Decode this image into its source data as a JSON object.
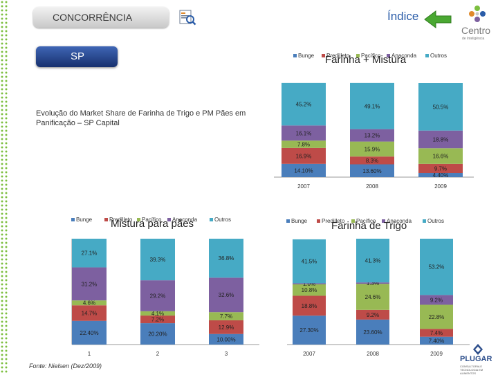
{
  "header": {
    "section_label": "CONCORRÊNCIA",
    "region_label": "SP",
    "index_link": "Índice",
    "logo_name": "Centro",
    "logo_subtitle": "de Inteligência"
  },
  "subtitle": "Evolução do Market Share de Farinha de Trigo e PM Pães em Panificação – SP Capital",
  "source": "Fonte: Nielsen (Dez/2009)",
  "footer_logo": {
    "name": "PLUGAR",
    "tagline": "CONSULTORIA E TECNOLOGIA EM ALIMENTOS"
  },
  "colors": {
    "Bunge": "#4a7ebb",
    "Predilleto": "#be4b48",
    "Pacífico": "#98b954",
    "Anaconda": "#7d60a0",
    "Outros": "#46aac5"
  },
  "chart_data": [
    {
      "id": "chart-a",
      "type": "bar",
      "stacked": true,
      "title": "Farinha + Mistura",
      "legend": [
        "Bunge",
        "Predilleto",
        "Pacífico",
        "Anaconda",
        "Outros"
      ],
      "categories": [
        "2007",
        "2008",
        "2009"
      ],
      "series": [
        {
          "name": "Bunge",
          "values": [
            14.1,
            13.6,
            4.4
          ],
          "labels": [
            "14.10%",
            "13.60%",
            "4.40%"
          ]
        },
        {
          "name": "Predilleto",
          "values": [
            16.9,
            8.3,
            9.7
          ],
          "labels": [
            "16.9%",
            "8.3%",
            "9.7%"
          ]
        },
        {
          "name": "Pacífico",
          "values": [
            7.8,
            15.9,
            16.6
          ],
          "labels": [
            "7.8%",
            "15.9%",
            "16.6%"
          ]
        },
        {
          "name": "Anaconda",
          "values": [
            16.1,
            13.2,
            18.8
          ],
          "labels": [
            "16.1%",
            "13.2%",
            "18.8%"
          ]
        },
        {
          "name": "Outros",
          "values": [
            45.2,
            49.1,
            50.5
          ],
          "labels": [
            "45.2%",
            "49.1%",
            "50.5%"
          ]
        }
      ],
      "ylim": [
        0,
        100
      ]
    },
    {
      "id": "chart-b",
      "type": "bar",
      "stacked": true,
      "title": "Mistura para pães",
      "legend": [
        "Bunge",
        "Predilleto",
        "Pacífico",
        "Anaconda",
        "Outros"
      ],
      "categories": [
        "1",
        "2",
        "3"
      ],
      "series": [
        {
          "name": "Bunge",
          "values": [
            22.4,
            20.2,
            10.0
          ],
          "labels": [
            "22.40%",
            "20.20%",
            "10.00%"
          ]
        },
        {
          "name": "Predilleto",
          "values": [
            14.7,
            7.2,
            12.9
          ],
          "labels": [
            "14.7%",
            "7.2%",
            "12.9%"
          ]
        },
        {
          "name": "Pacífico",
          "values": [
            4.6,
            4.1,
            7.7
          ],
          "labels": [
            "4.6%",
            "4.1%",
            "7.7%"
          ]
        },
        {
          "name": "Anaconda",
          "values": [
            31.2,
            29.2,
            32.6
          ],
          "labels": [
            "31.2%",
            "29.2%",
            "32.6%"
          ]
        },
        {
          "name": "Outros",
          "values": [
            27.1,
            39.3,
            36.8
          ],
          "labels": [
            "27.1%",
            "39.3%",
            "36.8%"
          ]
        }
      ],
      "ylim": [
        0,
        100
      ]
    },
    {
      "id": "chart-c",
      "type": "bar",
      "stacked": true,
      "title": "Farinha de Trigo",
      "legend": [
        "Bunge",
        "Predilleto",
        "Pacífico",
        "Anaconda",
        "Outros"
      ],
      "categories": [
        "2007",
        "2008",
        "2009"
      ],
      "series": [
        {
          "name": "Bunge",
          "values": [
            27.3,
            23.6,
            7.4
          ],
          "labels": [
            "27.30%",
            "23.60%",
            "7.40%"
          ]
        },
        {
          "name": "Predilleto",
          "values": [
            18.8,
            9.2,
            7.4
          ],
          "labels": [
            "18.8%",
            "9.2%",
            "7.4%"
          ]
        },
        {
          "name": "Pacífico",
          "values": [
            10.8,
            24.6,
            22.8
          ],
          "labels": [
            "10.8%",
            "24.6%",
            "22.8%"
          ]
        },
        {
          "name": "Anaconda",
          "values": [
            1.0,
            1.3,
            9.2
          ],
          "labels": [
            "1.0%",
            "1.3%",
            "9.2%"
          ]
        },
        {
          "name": "Outros",
          "values": [
            41.5,
            41.3,
            53.2
          ],
          "labels": [
            "41.5%",
            "41.3%",
            "53.2%"
          ]
        }
      ],
      "ylim": [
        0,
        100
      ]
    }
  ]
}
